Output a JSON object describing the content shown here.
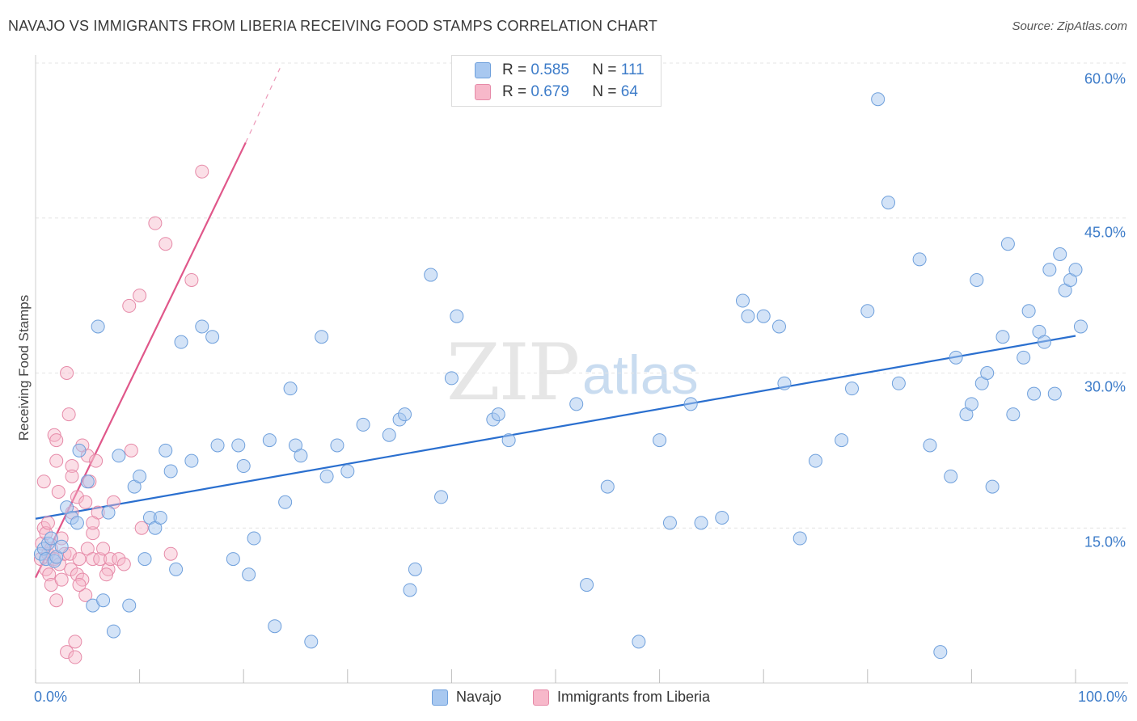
{
  "header": {
    "title": "NAVAJO VS IMMIGRANTS FROM LIBERIA RECEIVING FOOD STAMPS CORRELATION CHART",
    "source": "Source: ZipAtlas.com"
  },
  "watermark": {
    "zip": "ZIP",
    "atlas": "atlas"
  },
  "legend": {
    "navajo": {
      "r_label": "R =",
      "r_value": "0.585",
      "n_label": "N =",
      "n_value": "111"
    },
    "liberia": {
      "r_label": "R =",
      "r_value": "0.679",
      "n_label": "N =",
      "n_value": "64"
    }
  },
  "colors": {
    "navajo_fill": "#a8c8f0",
    "navajo_stroke": "#6fa0dc",
    "navajo_line": "#2a6fcf",
    "liberia_fill": "#f7b8ca",
    "liberia_stroke": "#e68aa8",
    "liberia_line": "#e0578a",
    "tick_text": "#3d7cc9"
  },
  "chart_data": {
    "type": "scatter",
    "title": "NAVAJO VS IMMIGRANTS FROM LIBERIA RECEIVING FOOD STAMPS CORRELATION CHART",
    "xlabel": "",
    "ylabel": "Receiving Food Stamps",
    "xlim": [
      0,
      100
    ],
    "ylim": [
      0,
      60
    ],
    "x_tick_labels": [
      "0.0%",
      "100.0%"
    ],
    "y_ticks": [
      15,
      30,
      45,
      60
    ],
    "y_tick_labels": [
      "15.0%",
      "30.0%",
      "45.0%",
      "60.0%"
    ],
    "grid": "horizontal dashed",
    "legend_labels": [
      "Navajo",
      "Immigrants from Liberia"
    ],
    "series": [
      {
        "name": "Navajo",
        "r": 0.585,
        "n": 111,
        "trend": {
          "x": [
            0,
            100
          ],
          "y": [
            15.9,
            33.6
          ]
        },
        "points": [
          [
            0.5,
            12.5
          ],
          [
            0.8,
            13.0
          ],
          [
            1,
            12.0
          ],
          [
            1.2,
            13.5
          ],
          [
            1.5,
            14.0
          ],
          [
            1.8,
            11.8
          ],
          [
            2.0,
            12.2
          ],
          [
            2.5,
            13.2
          ],
          [
            3.0,
            17.0
          ],
          [
            3.5,
            16.0
          ],
          [
            4.0,
            15.5
          ],
          [
            4.2,
            22.5
          ],
          [
            5.0,
            19.5
          ],
          [
            5.5,
            7.5
          ],
          [
            6.0,
            34.5
          ],
          [
            6.5,
            8.0
          ],
          [
            7.0,
            16.5
          ],
          [
            7.5,
            5.0
          ],
          [
            8.0,
            22.0
          ],
          [
            9.0,
            7.5
          ],
          [
            9.5,
            19.0
          ],
          [
            10.0,
            20.0
          ],
          [
            10.5,
            12.0
          ],
          [
            11.0,
            16.0
          ],
          [
            11.5,
            15.0
          ],
          [
            12.0,
            16.0
          ],
          [
            12.5,
            22.5
          ],
          [
            13.0,
            20.5
          ],
          [
            13.5,
            11.0
          ],
          [
            14.0,
            33.0
          ],
          [
            15.0,
            21.5
          ],
          [
            16.0,
            34.5
          ],
          [
            17.0,
            33.5
          ],
          [
            17.5,
            23.0
          ],
          [
            19.0,
            12.0
          ],
          [
            19.5,
            23.0
          ],
          [
            20.0,
            21.0
          ],
          [
            20.5,
            10.5
          ],
          [
            21.0,
            14.0
          ],
          [
            22.5,
            23.5
          ],
          [
            23.0,
            5.5
          ],
          [
            24.0,
            17.5
          ],
          [
            24.5,
            28.5
          ],
          [
            25.0,
            23.0
          ],
          [
            25.5,
            22.0
          ],
          [
            26.5,
            4.0
          ],
          [
            27.5,
            33.5
          ],
          [
            28.0,
            20.0
          ],
          [
            29.0,
            23.0
          ],
          [
            30.0,
            20.5
          ],
          [
            31.5,
            25.0
          ],
          [
            34.0,
            24.0
          ],
          [
            35.0,
            25.5
          ],
          [
            35.5,
            26.0
          ],
          [
            36.0,
            9.0
          ],
          [
            36.5,
            11.0
          ],
          [
            38.0,
            39.5
          ],
          [
            39.0,
            18.0
          ],
          [
            40.0,
            29.5
          ],
          [
            40.5,
            35.5
          ],
          [
            44.0,
            25.5
          ],
          [
            44.5,
            26.0
          ],
          [
            45.5,
            23.5
          ],
          [
            52.0,
            27.0
          ],
          [
            53.0,
            9.5
          ],
          [
            55.0,
            19.0
          ],
          [
            58.0,
            4.0
          ],
          [
            60.0,
            23.5
          ],
          [
            61.0,
            15.5
          ],
          [
            63.0,
            27.0
          ],
          [
            64.0,
            15.5
          ],
          [
            66.0,
            16.0
          ],
          [
            68.0,
            37.0
          ],
          [
            68.5,
            35.5
          ],
          [
            70.0,
            35.5
          ],
          [
            71.5,
            34.5
          ],
          [
            72.0,
            29.0
          ],
          [
            73.5,
            14.0
          ],
          [
            75.0,
            21.5
          ],
          [
            77.5,
            23.5
          ],
          [
            78.5,
            28.5
          ],
          [
            80.0,
            36.0
          ],
          [
            81.0,
            56.5
          ],
          [
            82.0,
            46.5
          ],
          [
            83.0,
            29.0
          ],
          [
            85.0,
            41.0
          ],
          [
            86.0,
            23.0
          ],
          [
            87.0,
            3.0
          ],
          [
            88.0,
            20.0
          ],
          [
            88.5,
            31.5
          ],
          [
            89.5,
            26.0
          ],
          [
            90.0,
            27.0
          ],
          [
            90.5,
            39.0
          ],
          [
            91.0,
            29.0
          ],
          [
            91.5,
            30.0
          ],
          [
            92.0,
            19.0
          ],
          [
            93.0,
            33.5
          ],
          [
            93.5,
            42.5
          ],
          [
            94.0,
            26.0
          ],
          [
            95.0,
            31.5
          ],
          [
            95.5,
            36.0
          ],
          [
            96.0,
            28.0
          ],
          [
            96.5,
            34.0
          ],
          [
            97.0,
            33.0
          ],
          [
            97.5,
            40.0
          ],
          [
            98.0,
            28.0
          ],
          [
            98.5,
            41.5
          ],
          [
            99.0,
            38.0
          ],
          [
            99.5,
            39.0
          ],
          [
            100.0,
            40.0
          ],
          [
            100.5,
            34.5
          ]
        ]
      },
      {
        "name": "Immigrants from Liberia",
        "r": 0.679,
        "n": 64,
        "trend": {
          "x": [
            0,
            20.2
          ],
          "y": [
            10.2,
            52.3
          ]
        },
        "trend_dashed": {
          "x": [
            20.2,
            23.5
          ],
          "y": [
            52.3,
            59.5
          ]
        },
        "points": [
          [
            0.5,
            12.0
          ],
          [
            0.6,
            13.5
          ],
          [
            0.8,
            15.0
          ],
          [
            0.8,
            19.5
          ],
          [
            1.0,
            11.0
          ],
          [
            1.0,
            14.5
          ],
          [
            1.2,
            12.5
          ],
          [
            1.3,
            10.5
          ],
          [
            1.5,
            13.0
          ],
          [
            1.5,
            9.5
          ],
          [
            1.8,
            12.0
          ],
          [
            1.8,
            24.0
          ],
          [
            2.0,
            21.5
          ],
          [
            2.0,
            8.0
          ],
          [
            2.2,
            18.5
          ],
          [
            2.3,
            11.5
          ],
          [
            2.5,
            14.0
          ],
          [
            2.5,
            10.0
          ],
          [
            2.8,
            12.5
          ],
          [
            3.0,
            30.0
          ],
          [
            3.0,
            3.0
          ],
          [
            3.2,
            26.0
          ],
          [
            3.3,
            12.5
          ],
          [
            3.4,
            11.0
          ],
          [
            3.5,
            21.0
          ],
          [
            3.5,
            20.0
          ],
          [
            3.8,
            4.0
          ],
          [
            3.8,
            2.5
          ],
          [
            4.0,
            18.0
          ],
          [
            4.0,
            10.5
          ],
          [
            4.2,
            12.0
          ],
          [
            4.5,
            23.0
          ],
          [
            4.5,
            10.0
          ],
          [
            4.8,
            17.5
          ],
          [
            4.8,
            8.5
          ],
          [
            5.0,
            22.0
          ],
          [
            5.0,
            13.0
          ],
          [
            5.2,
            19.5
          ],
          [
            5.5,
            14.5
          ],
          [
            5.5,
            12.0
          ],
          [
            5.8,
            21.5
          ],
          [
            6.0,
            16.5
          ],
          [
            6.2,
            12.0
          ],
          [
            6.5,
            13.0
          ],
          [
            7.0,
            11.0
          ],
          [
            7.2,
            12.0
          ],
          [
            7.5,
            17.5
          ],
          [
            8.0,
            12.0
          ],
          [
            8.5,
            11.5
          ],
          [
            9.0,
            36.5
          ],
          [
            9.2,
            22.5
          ],
          [
            10.0,
            37.5
          ],
          [
            10.2,
            15.0
          ],
          [
            11.5,
            44.5
          ],
          [
            12.5,
            42.5
          ],
          [
            13.0,
            12.5
          ],
          [
            15.0,
            39.0
          ],
          [
            16.0,
            49.5
          ],
          [
            2.0,
            23.5
          ],
          [
            3.5,
            16.5
          ],
          [
            5.5,
            15.5
          ],
          [
            6.8,
            10.5
          ],
          [
            1.2,
            15.5
          ],
          [
            4.2,
            9.5
          ]
        ]
      }
    ]
  }
}
